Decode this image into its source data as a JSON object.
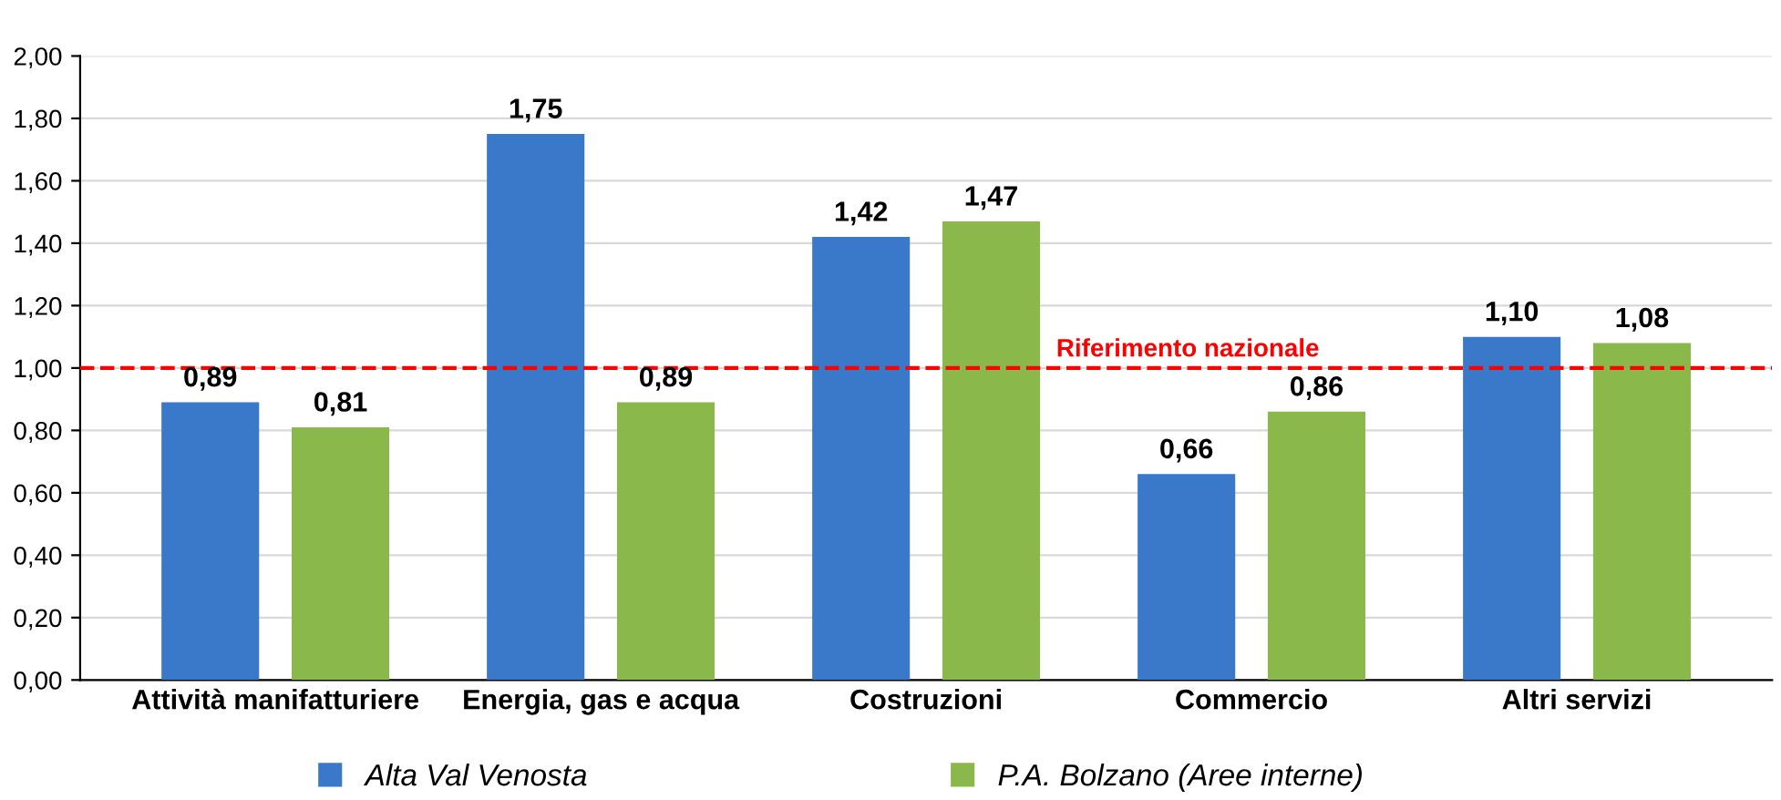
{
  "chart_data": {
    "type": "bar",
    "categories": [
      "Attività manifatturiere",
      "Energia, gas e acqua",
      "Costruzioni",
      "Commercio",
      "Altri servizi"
    ],
    "series": [
      {
        "name": "Alta Val Venosta",
        "color": "#3a78c9",
        "values": [
          0.89,
          1.75,
          1.42,
          0.66,
          1.1
        ],
        "value_labels": [
          "0,89",
          "1,75",
          "1,42",
          "0,66",
          "1,10"
        ]
      },
      {
        "name": "P.A. Bolzano (Aree interne)",
        "color": "#8ab84a",
        "values": [
          0.81,
          0.89,
          1.47,
          0.86,
          1.08
        ],
        "value_labels": [
          "0,81",
          "0,89",
          "1,47",
          "0,86",
          "1,08"
        ]
      }
    ],
    "ylim": [
      0,
      2
    ],
    "yticks": [
      {
        "value": 0,
        "label": "0,00"
      },
      {
        "value": 0.2,
        "label": "0,20"
      },
      {
        "value": 0.4,
        "label": "0,40"
      },
      {
        "value": 0.6,
        "label": "0,60"
      },
      {
        "value": 0.8,
        "label": "0,80"
      },
      {
        "value": 1.0,
        "label": "1,00"
      },
      {
        "value": 1.2,
        "label": "1,20"
      },
      {
        "value": 1.4,
        "label": "1,40"
      },
      {
        "value": 1.6,
        "label": "1,60"
      },
      {
        "value": 1.8,
        "label": "1,80"
      },
      {
        "value": 2.0,
        "label": "2,00"
      }
    ],
    "ref_lines": [
      {
        "axis": "y",
        "value": 1.0,
        "label": "Riferimento nazionale",
        "color": "#ff0000",
        "line_style": "dashed"
      }
    ],
    "grid": "y",
    "legend": "bottom"
  }
}
